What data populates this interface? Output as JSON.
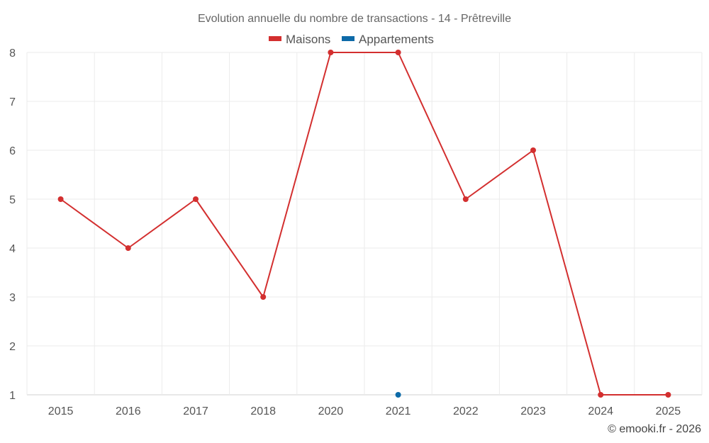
{
  "chart_data": {
    "type": "line",
    "title": "Evolution annuelle du nombre de transactions - 14 - Prêtreville",
    "categories": [
      "2015",
      "2016",
      "2017",
      "2018",
      "2020",
      "2021",
      "2022",
      "2023",
      "2024",
      "2025"
    ],
    "series": [
      {
        "name": "Maisons",
        "color": "#d32f2f",
        "values": [
          5,
          4,
          5,
          3,
          8,
          8,
          5,
          6,
          1,
          1
        ]
      },
      {
        "name": "Appartements",
        "color": "#0d6aa8",
        "values": [
          null,
          null,
          null,
          null,
          null,
          1,
          null,
          null,
          null,
          null
        ]
      }
    ],
    "ylim": [
      1,
      8
    ],
    "yticks": [
      "1",
      "2",
      "3",
      "4",
      "5",
      "6",
      "7",
      "8"
    ],
    "grid": true,
    "legend": "top-center",
    "xlabel": "",
    "ylabel": ""
  },
  "credit": "© emooki.fr - 2026"
}
